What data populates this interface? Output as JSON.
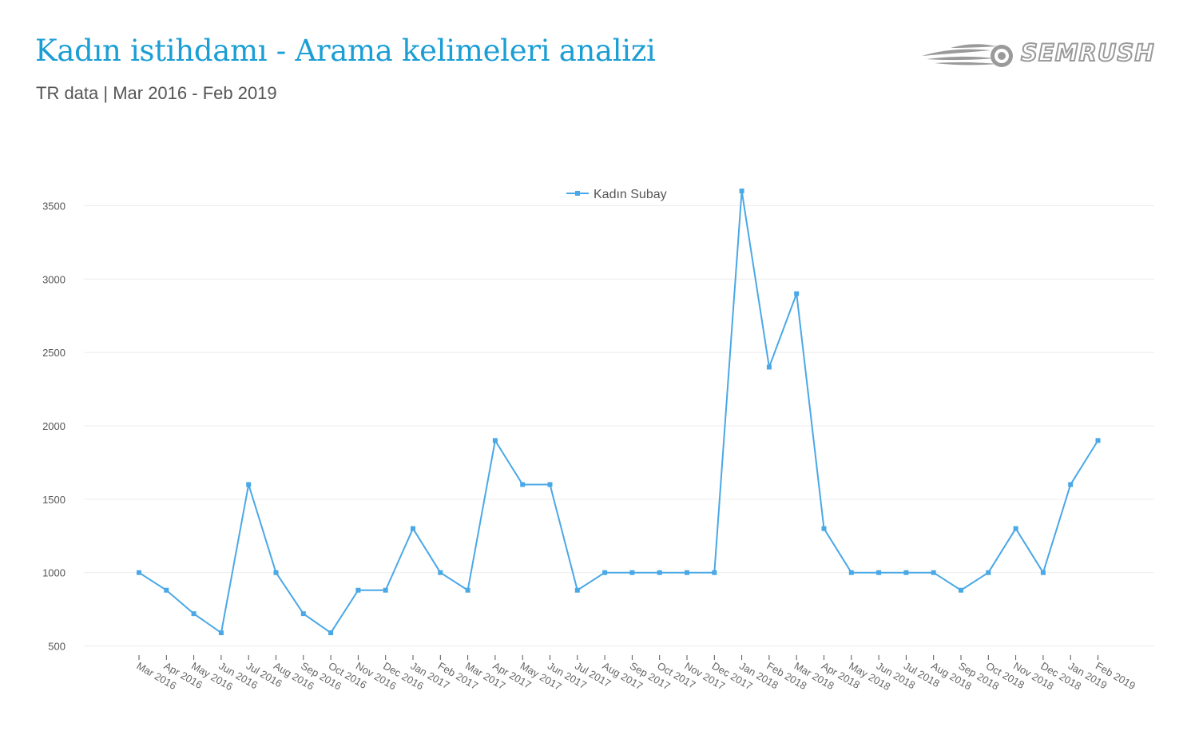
{
  "header": {
    "title": "Kadın istihdamı - Arama kelimeleri analizi",
    "subtitle": "TR data | Mar 2016 - Feb 2019",
    "logo_text": "SEMRUSH"
  },
  "colors": {
    "title": "#1a9ed4",
    "series": "#4aa8e6",
    "grid": "#ececec",
    "logo": "#9a9a9a"
  },
  "chart_data": {
    "type": "line",
    "title": "",
    "xlabel": "",
    "ylabel": "",
    "legend_position": "top-center",
    "grid": true,
    "y_ticks": [
      500,
      1000,
      1500,
      2000,
      2500,
      3000,
      3500
    ],
    "ylim": [
      220,
      3660
    ],
    "categories": [
      "Mar 2016",
      "Apr 2016",
      "May 2016",
      "Jun 2016",
      "Jul 2016",
      "Aug 2016",
      "Sep 2016",
      "Oct 2016",
      "Nov 2016",
      "Dec 2016",
      "Jan 2017",
      "Feb 2017",
      "Mar 2017",
      "Apr 2017",
      "May 2017",
      "Jun 2017",
      "Jul 2017",
      "Aug 2017",
      "Sep 2017",
      "Oct 2017",
      "Nov 2017",
      "Dec 2017",
      "Jan 2018",
      "Feb 2018",
      "Mar 2018",
      "Apr 2018",
      "May 2018",
      "Jun 2018",
      "Jul 2018",
      "Aug 2018",
      "Sep 2018",
      "Oct 2018",
      "Nov 2018",
      "Dec 2018",
      "Jan 2019",
      "Feb 2019"
    ],
    "series": [
      {
        "name": "Kadın Subay",
        "values": [
          1000,
          880,
          720,
          590,
          1600,
          1000,
          720,
          590,
          880,
          880,
          1300,
          1000,
          880,
          1900,
          1600,
          1600,
          880,
          1000,
          1000,
          1000,
          1000,
          1000,
          3600,
          2400,
          2900,
          1300,
          1000,
          1000,
          1000,
          1000,
          880,
          1000,
          1300,
          1000,
          1600,
          1900
        ]
      }
    ]
  }
}
